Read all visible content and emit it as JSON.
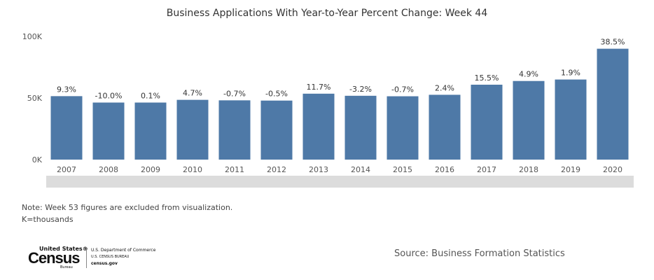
{
  "chart_data": {
    "type": "bar",
    "title": "Business Applications With Year-to-Year Percent Change: Week 44",
    "categories": [
      "2007",
      "2008",
      "2009",
      "2010",
      "2011",
      "2012",
      "2013",
      "2014",
      "2015",
      "2016",
      "2017",
      "2018",
      "2019",
      "2020"
    ],
    "values": [
      51500,
      46300,
      46300,
      48500,
      48100,
      47900,
      53500,
      51800,
      51400,
      52600,
      60800,
      63800,
      65000,
      90000
    ],
    "data_labels": [
      "9.3%",
      "-10.0%",
      "0.1%",
      "4.7%",
      "-0.7%",
      "-0.5%",
      "11.7%",
      "-3.2%",
      "-0.7%",
      "2.4%",
      "15.5%",
      "4.9%",
      "1.9%",
      "38.5%"
    ],
    "ylim": [
      0,
      100000
    ],
    "yticks": [
      0,
      50000,
      100000
    ],
    "ytick_labels": [
      "0K",
      "50K",
      "100K"
    ],
    "bar_color": "#4e79a7",
    "grid": false
  },
  "notes": {
    "line1": "Note: Week 53 figures are excluded from visualization.",
    "line2": "K=thousands"
  },
  "logo": {
    "top": "United States®",
    "main": "Census",
    "sub": "Bureau",
    "line1": "U.S. Department of Commerce",
    "line2": "U.S. CENSUS BUREAU",
    "line3": "census.gov"
  },
  "source": "Source: Business Formation Statistics"
}
